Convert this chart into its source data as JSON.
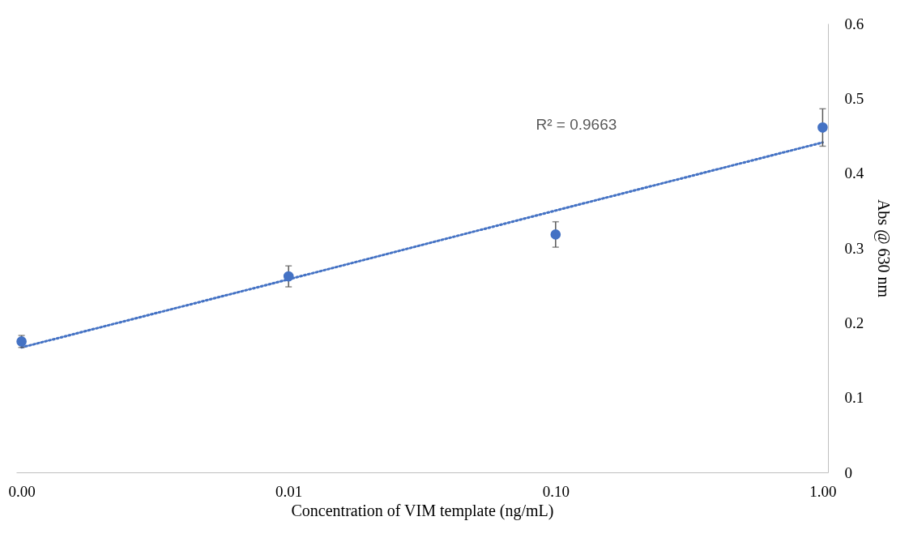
{
  "chart_data": {
    "type": "scatter",
    "xlabel": "Concentration of VIM template (ng/mL)",
    "ylabel": "Abs @ 630  nm",
    "categories": [
      "0.00",
      "0.01",
      "0.10",
      "1.00"
    ],
    "series": [
      {
        "color": "#4472c4",
        "values": [
          0.175,
          0.262,
          0.318,
          0.461
        ],
        "errors": [
          0.008,
          0.014,
          0.017,
          0.025
        ],
        "marker": "circle"
      },
      {
        "type": "line",
        "color": "#4472c4",
        "x": [
          "0.00",
          "0.01",
          "0.10",
          "1.00"
        ],
        "values": [
          0.167,
          0.258,
          0.35,
          0.441
        ],
        "line_style": "dotted"
      }
    ],
    "ylim": [
      0,
      0.6
    ],
    "yticks": [
      0,
      0.1,
      0.2,
      0.3,
      0.4,
      0.5,
      0.6
    ],
    "annotations": [
      "R² = 0.9663"
    ],
    "grid": false
  }
}
